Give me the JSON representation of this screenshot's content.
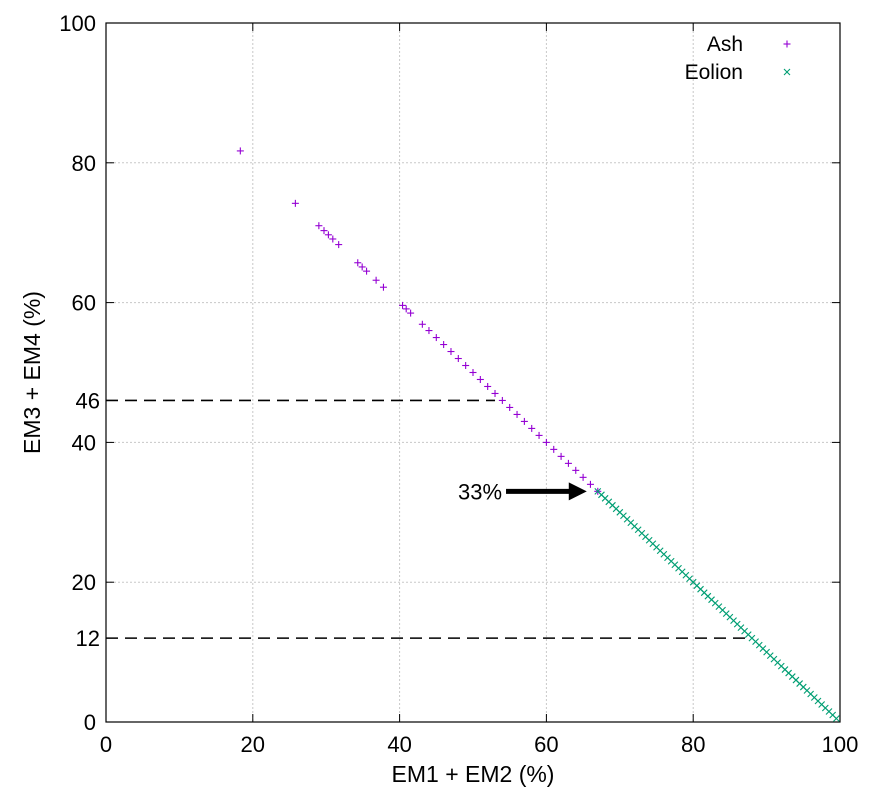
{
  "chart_data": {
    "type": "scatter",
    "xlabel": "EM1 + EM2 (%)",
    "ylabel": "EM3 + EM4 (%)",
    "xlim": [
      0,
      100
    ],
    "ylim": [
      0,
      100
    ],
    "xticks": [
      0,
      20,
      40,
      60,
      80,
      100
    ],
    "yticks": [
      0,
      20,
      40,
      60,
      80,
      100
    ],
    "grid": true,
    "legend_position": "top-right",
    "series": [
      {
        "name": "Ash",
        "marker": "+",
        "color": "#9400d3",
        "x": [
          18.3,
          25.8,
          29.0,
          29.7,
          30.3,
          30.9,
          31.7,
          34.3,
          34.9,
          35.5,
          36.8,
          37.8,
          40.4,
          40.9,
          41.5,
          43.1,
          44.0,
          45.0,
          46.0,
          47.0,
          48.0,
          49.0,
          50.0,
          51.0,
          52.0,
          53.0,
          54.0,
          55.0,
          56.0,
          57.0,
          58.0,
          59.0,
          60.0,
          61.0,
          62.0,
          63.0,
          64.0,
          65.0,
          66.0,
          67.0
        ],
        "y": [
          81.7,
          74.2,
          71.0,
          70.3,
          69.7,
          69.1,
          68.3,
          65.7,
          65.1,
          64.5,
          63.2,
          62.2,
          59.6,
          59.1,
          58.5,
          56.9,
          56.0,
          55.0,
          54.0,
          53.0,
          52.0,
          51.0,
          50.0,
          49.0,
          48.0,
          47.0,
          46.0,
          45.0,
          44.0,
          43.0,
          42.0,
          41.0,
          40.0,
          39.0,
          38.0,
          37.0,
          36.0,
          35.0,
          34.0,
          33.0
        ]
      },
      {
        "name": "Eolion",
        "marker": "x",
        "color": "#009e73",
        "x": [
          67.0,
          67.5,
          68.0,
          68.5,
          69.0,
          69.5,
          70.0,
          70.5,
          71.0,
          71.5,
          72.0,
          72.5,
          73.0,
          73.5,
          74.0,
          74.5,
          75.0,
          75.5,
          76.0,
          76.5,
          77.0,
          77.5,
          78.0,
          78.5,
          79.0,
          79.5,
          80.0,
          80.5,
          81.0,
          81.5,
          82.0,
          82.5,
          83.0,
          83.5,
          84.0,
          84.5,
          85.0,
          85.5,
          86.0,
          86.5,
          87.0,
          87.5,
          88.0,
          88.5,
          89.0,
          89.5,
          90.0,
          90.5,
          91.0,
          91.5,
          92.0,
          92.5,
          93.0,
          93.5,
          94.0,
          94.5,
          95.0,
          95.5,
          96.0,
          96.5,
          97.0,
          97.5,
          98.0,
          98.5,
          99.0,
          99.5
        ],
        "y": [
          33.0,
          32.5,
          32.0,
          31.5,
          31.0,
          30.5,
          30.0,
          29.5,
          29.0,
          28.5,
          28.0,
          27.5,
          27.0,
          26.5,
          26.0,
          25.5,
          25.0,
          24.5,
          24.0,
          23.5,
          23.0,
          22.5,
          22.0,
          21.5,
          21.0,
          20.5,
          20.0,
          19.5,
          19.0,
          18.5,
          18.0,
          17.5,
          17.0,
          16.5,
          16.0,
          15.5,
          15.0,
          14.5,
          14.0,
          13.5,
          13.0,
          12.5,
          12.0,
          11.5,
          11.0,
          10.5,
          10.0,
          9.5,
          9.0,
          8.5,
          8.0,
          7.5,
          7.0,
          6.5,
          6.0,
          5.5,
          5.0,
          4.5,
          4.0,
          3.5,
          3.0,
          2.5,
          2.0,
          1.5,
          1.0,
          0.5
        ]
      }
    ],
    "annotations": {
      "hlines": [
        {
          "label": "46",
          "y": 46,
          "x_end": 53
        },
        {
          "label": "12",
          "y": 12,
          "x_end": 87.5
        }
      ],
      "arrow": {
        "label": "33%",
        "x_start": 54.5,
        "x_end": 65.5,
        "y": 33
      }
    }
  }
}
